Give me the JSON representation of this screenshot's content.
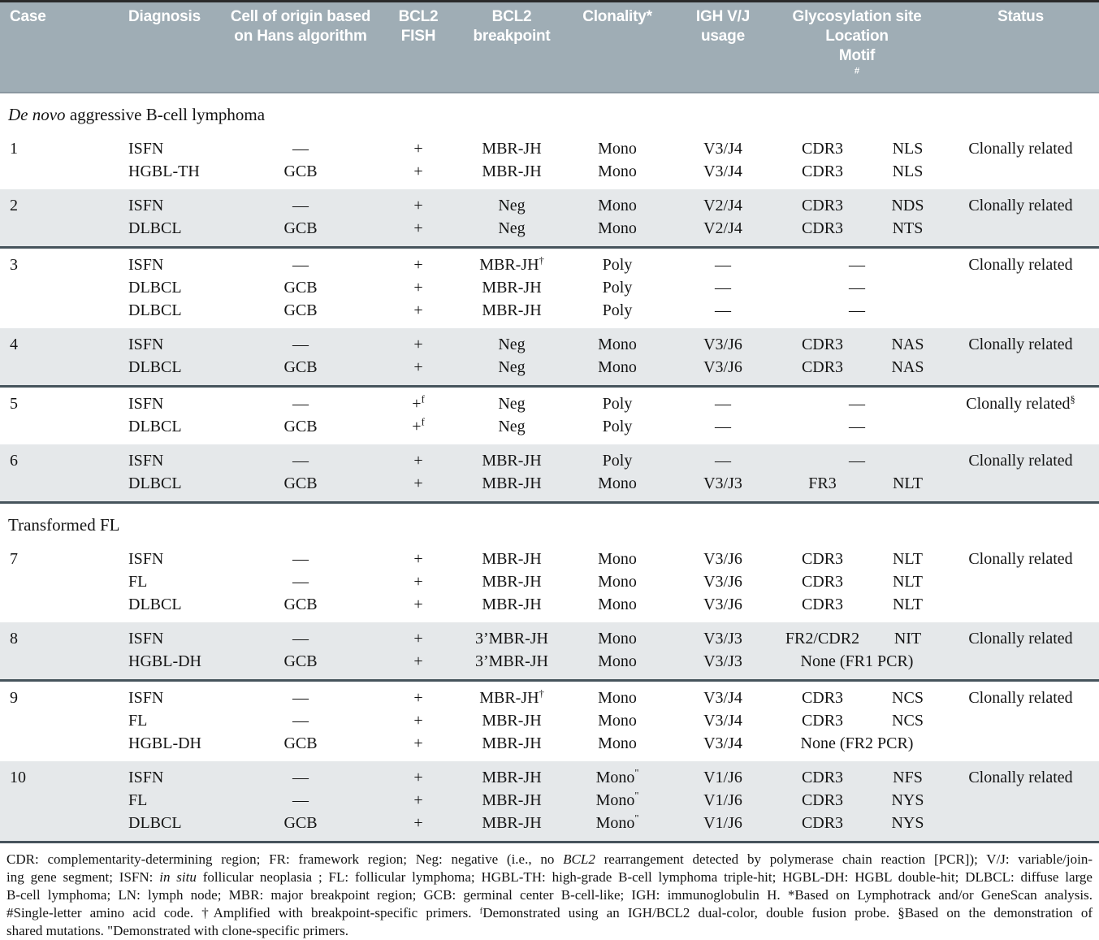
{
  "table": {
    "header": {
      "case": "Case",
      "diagnosis": "Diagnosis",
      "origin_line1": "Cell of origin based",
      "origin_line2": "on Hans algorithm",
      "fish_line1": "BCL2",
      "fish_line2": "FISH",
      "bp_line1": "BCL2",
      "bp_line2": "breakpoint",
      "clonality": "Clonality*",
      "igh_line1": "IGH V/J",
      "igh_line2": "usage",
      "glyco": "Glycosylation site",
      "glyco_location": "Location",
      "glyco_motif": "Motif",
      "glyco_motif_sup": "#",
      "status": "Status"
    },
    "sections": [
      {
        "title": [
          {
            "t": "De novo",
            "i": 1
          },
          {
            "t": " aggressive B-cell lymphoma",
            "i": 0
          }
        ],
        "cases": [
          {
            "num": "1",
            "shaded": false,
            "status": "Clonally related",
            "rows": [
              {
                "diagnosis": "ISFN",
                "origin": "—",
                "fish": "+",
                "breakpoint": "MBR-JH",
                "clonality": "Mono",
                "igh": "V3/J4",
                "location": "CDR3",
                "motif": "NLS"
              },
              {
                "diagnosis": "HGBL-TH",
                "origin": "GCB",
                "fish": "+",
                "breakpoint": "MBR-JH",
                "clonality": "Mono",
                "igh": "V3/J4",
                "location": "CDR3",
                "motif": "NLS"
              }
            ]
          },
          {
            "num": "2",
            "shaded": true,
            "status": "Clonally related",
            "rows": [
              {
                "diagnosis": "ISFN",
                "origin": "—",
                "fish": "+",
                "breakpoint": "Neg",
                "clonality": "Mono",
                "igh": "V2/J4",
                "location": "CDR3",
                "motif": "NDS"
              },
              {
                "diagnosis": "DLBCL",
                "origin": "GCB",
                "fish": "+",
                "breakpoint": "Neg",
                "clonality": "Mono",
                "igh": "V2/J4",
                "location": "CDR3",
                "motif": "NTS"
              }
            ]
          },
          {
            "num": "3",
            "shaded": false,
            "status": "Clonally related",
            "rows": [
              {
                "diagnosis": "ISFN",
                "origin": "—",
                "fish": "+",
                "breakpoint": "MBR-JH",
                "breakpoint_sup": "†",
                "clonality": "Poly",
                "igh": "—",
                "glyco_span": "—"
              },
              {
                "diagnosis": "DLBCL",
                "origin": "GCB",
                "fish": "+",
                "breakpoint": "MBR-JH",
                "clonality": "Poly",
                "igh": "—",
                "glyco_span": "—"
              },
              {
                "diagnosis": "DLBCL",
                "origin": "GCB",
                "fish": "+",
                "breakpoint": "MBR-JH",
                "clonality": "Poly",
                "igh": "—",
                "glyco_span": "—"
              }
            ]
          },
          {
            "num": "4",
            "shaded": true,
            "status": "Clonally related",
            "rows": [
              {
                "diagnosis": "ISFN",
                "origin": "—",
                "fish": "+",
                "breakpoint": "Neg",
                "clonality": "Mono",
                "igh": "V3/J6",
                "location": "CDR3",
                "motif": "NAS"
              },
              {
                "diagnosis": "DLBCL",
                "origin": "GCB",
                "fish": "+",
                "breakpoint": "Neg",
                "clonality": "Mono",
                "igh": "V3/J6",
                "location": "CDR3",
                "motif": "NAS"
              }
            ]
          },
          {
            "num": "5",
            "shaded": false,
            "status": "Clonally related",
            "status_sup": "§",
            "rows": [
              {
                "diagnosis": "ISFN",
                "origin": "—",
                "fish": "+",
                "fish_sup": "f",
                "breakpoint": "Neg",
                "clonality": "Poly",
                "igh": "—",
                "glyco_span": "—"
              },
              {
                "diagnosis": "DLBCL",
                "origin": "GCB",
                "fish": "+",
                "fish_sup": "f",
                "breakpoint": "Neg",
                "clonality": "Poly",
                "igh": "—",
                "glyco_span": "—"
              }
            ]
          },
          {
            "num": "6",
            "shaded": true,
            "status": "Clonally related",
            "rows": [
              {
                "diagnosis": "ISFN",
                "origin": "—",
                "fish": "+",
                "breakpoint": "MBR-JH",
                "clonality": "Poly",
                "igh": "—",
                "glyco_span": "—"
              },
              {
                "diagnosis": "DLBCL",
                "origin": "GCB",
                "fish": "+",
                "breakpoint": "MBR-JH",
                "clonality": "Mono",
                "igh": "V3/J3",
                "location": "FR3",
                "motif": "NLT"
              }
            ]
          }
        ]
      },
      {
        "title": [
          {
            "t": "Transformed FL",
            "i": 0
          }
        ],
        "cases": [
          {
            "num": "7",
            "shaded": false,
            "status": "Clonally related",
            "rows": [
              {
                "diagnosis": "ISFN",
                "origin": "—",
                "fish": "+",
                "breakpoint": "MBR-JH",
                "clonality": "Mono",
                "igh": "V3/J6",
                "location": "CDR3",
                "motif": "NLT"
              },
              {
                "diagnosis": "FL",
                "origin": "—",
                "fish": "+",
                "breakpoint": "MBR-JH",
                "clonality": "Mono",
                "igh": "V3/J6",
                "location": "CDR3",
                "motif": "NLT"
              },
              {
                "diagnosis": "DLBCL",
                "origin": "GCB",
                "fish": "+",
                "breakpoint": "MBR-JH",
                "clonality": "Mono",
                "igh": "V3/J6",
                "location": "CDR3",
                "motif": "NLT"
              }
            ]
          },
          {
            "num": "8",
            "shaded": true,
            "status": "Clonally related",
            "rows": [
              {
                "diagnosis": "ISFN",
                "origin": "—",
                "fish": "+",
                "breakpoint": "3’MBR-JH",
                "clonality": "Mono",
                "igh": "V3/J3",
                "location": "FR2/CDR2",
                "motif": "NIT"
              },
              {
                "diagnosis": "HGBL-DH",
                "origin": "GCB",
                "fish": "+",
                "breakpoint": "3’MBR-JH",
                "clonality": "Mono",
                "igh": "V3/J3",
                "glyco_span": "None (FR1 PCR)"
              }
            ]
          },
          {
            "num": "9",
            "shaded": false,
            "status": "Clonally related",
            "rows": [
              {
                "diagnosis": "ISFN",
                "origin": "—",
                "fish": "+",
                "breakpoint": "MBR-JH",
                "breakpoint_sup": "†",
                "clonality": "Mono",
                "igh": "V3/J4",
                "location": "CDR3",
                "motif": "NCS"
              },
              {
                "diagnosis": "FL",
                "origin": "—",
                "fish": "+",
                "breakpoint": "MBR-JH",
                "clonality": "Mono",
                "igh": "V3/J4",
                "location": "CDR3",
                "motif": "NCS"
              },
              {
                "diagnosis": "HGBL-DH",
                "origin": "GCB",
                "fish": "+",
                "breakpoint": "MBR-JH",
                "clonality": "Mono",
                "igh": "V3/J4",
                "glyco_span": "None (FR2 PCR)"
              }
            ]
          },
          {
            "num": "10",
            "shaded": true,
            "status": "Clonally related",
            "rows": [
              {
                "diagnosis": "ISFN",
                "origin": "—",
                "fish": "+",
                "breakpoint": "MBR-JH",
                "clonality": "Mono",
                "clonality_sup": "\"",
                "igh": "V1/J6",
                "location": "CDR3",
                "motif": "NFS"
              },
              {
                "diagnosis": "FL",
                "origin": "—",
                "fish": "+",
                "breakpoint": "MBR-JH",
                "clonality": "Mono",
                "clonality_sup": "\"",
                "igh": "V1/J6",
                "location": "CDR3",
                "motif": "NYS"
              },
              {
                "diagnosis": "DLBCL",
                "origin": "GCB",
                "fish": "+",
                "breakpoint": "MBR-JH",
                "clonality": "Mono",
                "clonality_sup": "\"",
                "igh": "V1/J6",
                "location": "CDR3",
                "motif": "NYS"
              }
            ]
          }
        ]
      }
    ],
    "footnotes": [
      [
        {
          "t": "CDR: complementarity-determining region; FR: framework region; Neg: negative (i.e., no ",
          "i": 0
        },
        {
          "t": "BCL2",
          "i": 1
        },
        {
          "t": " rearrangement detected by polymerase chain reaction [PCR]); V/J: variable/join-",
          "i": 0
        }
      ],
      [
        {
          "t": "ing gene segment; ISFN: ",
          "i": 0
        },
        {
          "t": "in situ",
          "i": 1
        },
        {
          "t": " follicular neoplasia ; FL: follicular lymphoma; HGBL-TH: high-grade B-cell lymphoma triple-hit; HGBL-DH: HGBL double-hit; DLBCL: diffuse large",
          "i": 0
        }
      ],
      [
        {
          "t": "B-cell lymphoma; LN: lymph node; MBR: major breakpoint region; GCB: germinal center B-cell-like; IGH: immunoglobulin H. *Based on Lymphotrack and/or GeneScan analysis.",
          "i": 0
        }
      ],
      [
        {
          "t": "#Single-letter amino acid code. †Amplified with breakpoint-specific primers. ᶠDemonstrated using an IGH/BCL2 dual-color, double fusion probe. §Based on the demonstration of",
          "i": 0
        }
      ],
      [
        {
          "t": "shared mutations. \"Demonstrated with clone-specific primers.",
          "i": 0
        }
      ]
    ]
  }
}
